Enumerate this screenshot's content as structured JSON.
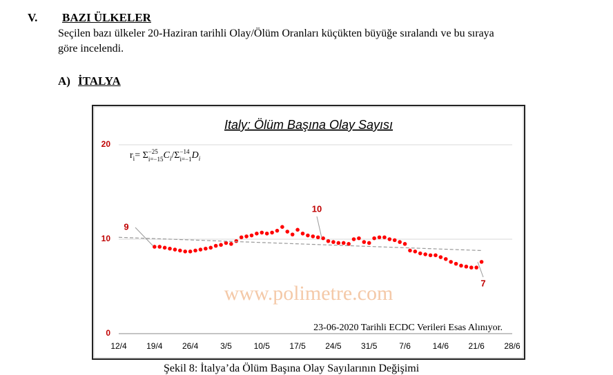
{
  "header": {
    "number": "V.",
    "title": "BAZI ÜLKELER"
  },
  "paragraph": [
    "Seçilen bazı ülkeler 20-Haziran tarihli Olay/Ölüm Oranları küçükten büyüğe sıralandı ve bu sıraya",
    "göre incelendi."
  ],
  "subsection": {
    "number": "A)",
    "title": "İTALYA"
  },
  "chart_data": {
    "type": "line",
    "title": "Italy: Ölüm Başına Olay Sayısı",
    "formula": [
      "r",
      "i",
      "= Σ",
      "−25",
      "i=−15",
      "C",
      "i",
      "/Σ",
      "−14",
      "i=−1",
      "D",
      "i"
    ],
    "note": "23-06-2020 Tarihli ECDC Verileri Esas Alınıyor.",
    "watermark": "www.polimetre.com",
    "annotations": [
      "9",
      "10",
      "7"
    ],
    "categories": [
      "12/4",
      null,
      null,
      null,
      null,
      null,
      null,
      "19/4",
      null,
      null,
      null,
      null,
      null,
      null,
      "26/4",
      null,
      null,
      null,
      null,
      null,
      null,
      "3/5",
      null,
      null,
      null,
      null,
      null,
      null,
      "10/5",
      null,
      null,
      null,
      null,
      null,
      null,
      "17/5",
      null,
      null,
      null,
      null,
      null,
      null,
      "24/5",
      null,
      null,
      null,
      null,
      null,
      null,
      "31/5",
      null,
      null,
      null,
      null,
      null,
      null,
      "7/6",
      null,
      null,
      null,
      null,
      null,
      null,
      "14/6",
      null,
      null,
      null,
      null,
      null,
      null,
      "21/6",
      null,
      null,
      null,
      null,
      null,
      null,
      "28/6"
    ],
    "series": [
      {
        "color": "#ff0000",
        "values": [
          null,
          null,
          null,
          null,
          null,
          null,
          null,
          9.2,
          9.2,
          9.1,
          9.0,
          8.9,
          8.8,
          8.7,
          8.7,
          8.8,
          8.9,
          9.0,
          9.1,
          9.3,
          9.4,
          9.6,
          9.5,
          9.8,
          10.2,
          10.3,
          10.4,
          10.6,
          10.7,
          10.6,
          10.7,
          10.9,
          11.3,
          10.8,
          10.5,
          11.0,
          10.6,
          10.4,
          10.3,
          10.2,
          10.1,
          9.8,
          9.7,
          9.6,
          9.6,
          9.5,
          10.0,
          10.1,
          9.7,
          9.6,
          10.1,
          10.2,
          10.2,
          10.0,
          9.9,
          9.7,
          9.5,
          8.8,
          8.7,
          8.5,
          8.4,
          8.3,
          8.3,
          8.1,
          7.9,
          7.6,
          7.4,
          7.2,
          7.1,
          7.0,
          7.0,
          7.6,
          null,
          null,
          null,
          null,
          null,
          null
        ]
      },
      {
        "color": "#999999",
        "dash": true,
        "values": [
          10.2,
          null,
          null,
          null,
          null,
          null,
          null,
          null,
          null,
          null,
          null,
          null,
          null,
          null,
          null,
          null,
          null,
          null,
          null,
          null,
          null,
          null,
          null,
          null,
          null,
          null,
          null,
          null,
          null,
          null,
          null,
          null,
          null,
          null,
          null,
          null,
          null,
          null,
          null,
          null,
          null,
          null,
          null,
          null,
          null,
          null,
          null,
          null,
          null,
          null,
          null,
          null,
          null,
          null,
          null,
          null,
          null,
          null,
          null,
          null,
          null,
          null,
          null,
          null,
          null,
          null,
          null,
          null,
          null,
          null,
          null,
          8.8,
          null,
          null,
          null,
          null,
          null,
          null
        ]
      }
    ],
    "ylim": [
      0,
      20
    ],
    "yticks": [
      0,
      10,
      20
    ],
    "grid": true
  },
  "caption": "Şekil 8: İtalya’da Ölüm Başına Olay Sayılarının Değişimi"
}
